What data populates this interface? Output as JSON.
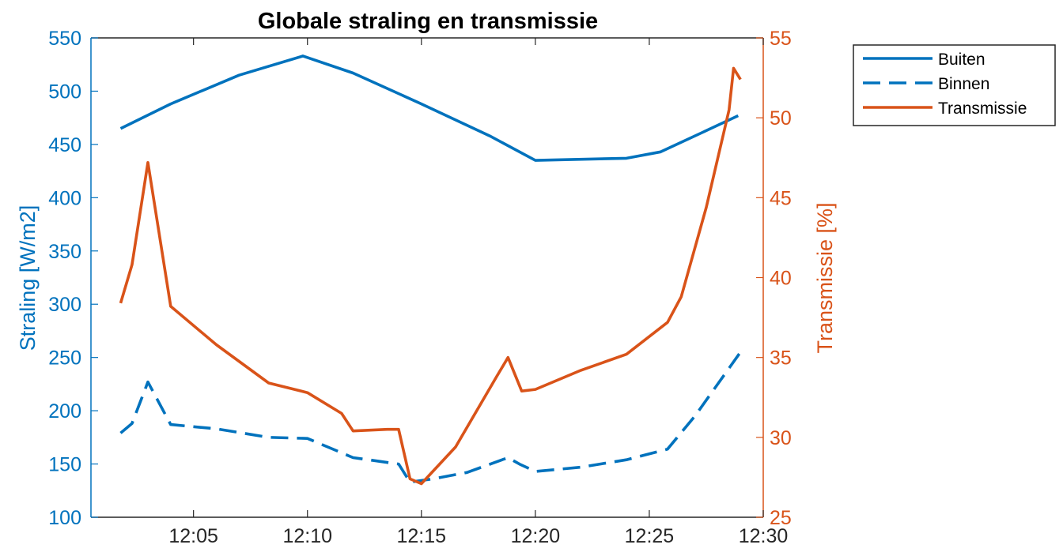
{
  "chart_data": {
    "type": "line",
    "title": "Globale straling en transmissie",
    "xlabel": "",
    "ylabel_left": "Straling [W/m2]",
    "ylabel_right": "Transmissie [%]",
    "xlim": [
      0.5,
      30
    ],
    "x_ticks": [
      5,
      10,
      15,
      20,
      25,
      30
    ],
    "x_tick_labels": [
      "12:05",
      "12:10",
      "12:15",
      "12:20",
      "12:25",
      "12:30"
    ],
    "ylim_left": [
      100,
      550
    ],
    "y_ticks_left": [
      100,
      150,
      200,
      250,
      300,
      350,
      400,
      450,
      500,
      550
    ],
    "ylim_right": [
      25,
      55
    ],
    "y_ticks_right": [
      25,
      30,
      35,
      40,
      45,
      50,
      55
    ],
    "grid": false,
    "legend_position": "outside-top-right",
    "colors": {
      "left_axis": "#0072BD",
      "right_axis": "#D95319"
    },
    "series": [
      {
        "name": "Buiten",
        "axis": "left",
        "style": "solid",
        "color": "#0072BD",
        "x": [
          1.8,
          4,
          7,
          9.8,
          12,
          15,
          18,
          20,
          24,
          25.5,
          27.5,
          28.9
        ],
        "y": [
          465,
          488,
          515,
          533,
          517,
          488,
          458,
          435,
          437,
          443,
          463,
          477
        ]
      },
      {
        "name": "Binnen",
        "axis": "left",
        "style": "dashed",
        "color": "#0072BD",
        "x": [
          1.8,
          2.3,
          3,
          4,
          6,
          8.3,
          10,
          12,
          14,
          14.5,
          15.5,
          17,
          18.8,
          19.3,
          20,
          22,
          24,
          25.8,
          27,
          28.5,
          29
        ],
        "y": [
          179,
          188,
          227,
          187,
          183,
          175,
          174,
          156,
          150,
          133,
          136,
          142,
          156,
          150,
          143,
          147,
          154,
          164,
          195,
          240,
          255
        ]
      },
      {
        "name": "Transmissie",
        "axis": "right",
        "style": "solid",
        "color": "#D95319",
        "x": [
          1.8,
          2.3,
          3,
          4,
          6,
          8.3,
          10,
          11.5,
          12,
          13.5,
          14,
          14.5,
          15,
          16.5,
          18.3,
          18.8,
          19.4,
          20,
          22,
          24,
          25.8,
          26.4,
          27.5,
          28.5,
          28.7,
          29
        ],
        "y": [
          38.4,
          40.8,
          47.2,
          38.2,
          35.8,
          33.4,
          32.8,
          31.5,
          30.4,
          30.5,
          30.5,
          27.4,
          27.1,
          29.4,
          33.8,
          35.0,
          32.9,
          33.0,
          34.2,
          35.2,
          37.2,
          38.8,
          44.4,
          50.5,
          53.1,
          52.4
        ]
      }
    ]
  }
}
